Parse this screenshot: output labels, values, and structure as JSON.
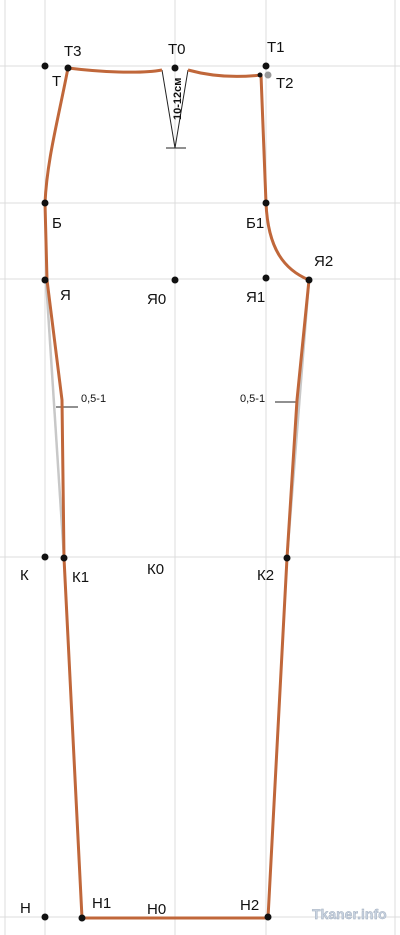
{
  "nodes": [
    {
      "label": "Т3"
    },
    {
      "label": "Т0"
    },
    {
      "label": "Т1"
    },
    {
      "label": "Т"
    },
    {
      "label": "Т2"
    },
    {
      "label": "Б"
    },
    {
      "label": "Б1"
    },
    {
      "label": "Я2"
    },
    {
      "label": "Я"
    },
    {
      "label": "Я0"
    },
    {
      "label": "Я1"
    },
    {
      "label": "К"
    },
    {
      "label": "К1"
    },
    {
      "label": "К0"
    },
    {
      "label": "К2"
    },
    {
      "label": "Н"
    },
    {
      "label": "Н1"
    },
    {
      "label": "Н0"
    },
    {
      "label": "Н2"
    }
  ],
  "annotations": {
    "dart": "10-12см",
    "left_offset": "0,5-1",
    "right_offset": "0,5-1"
  },
  "watermark": "Tkaner.info"
}
